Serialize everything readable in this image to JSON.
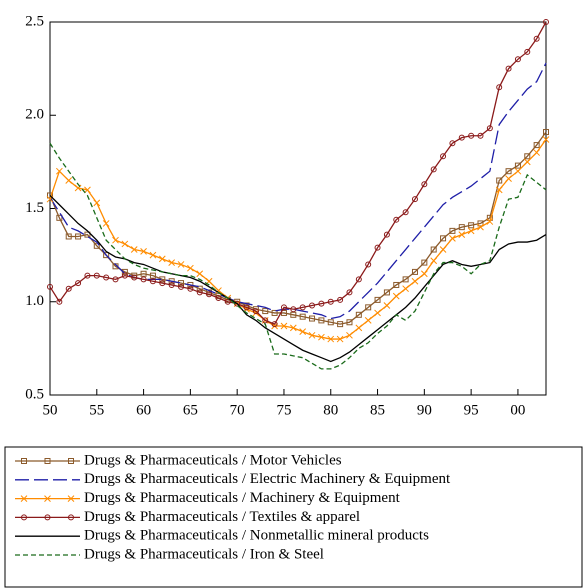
{
  "chart_data": {
    "type": "line",
    "x": [
      1950,
      1951,
      1952,
      1953,
      1954,
      1955,
      1956,
      1957,
      1958,
      1959,
      1960,
      1961,
      1962,
      1963,
      1964,
      1965,
      1966,
      1967,
      1968,
      1969,
      1970,
      1971,
      1972,
      1973,
      1974,
      1975,
      1976,
      1977,
      1978,
      1979,
      1980,
      1981,
      1982,
      1983,
      1984,
      1985,
      1986,
      1987,
      1988,
      1989,
      1990,
      1991,
      1992,
      1993,
      1994,
      1995,
      1996,
      1997,
      1998,
      1999,
      2000,
      2001,
      2002,
      2003
    ],
    "xlim": [
      1950,
      2003
    ],
    "xticks": [
      {
        "value": 1950,
        "label": "50"
      },
      {
        "value": 1955,
        "label": "55"
      },
      {
        "value": 1960,
        "label": "60"
      },
      {
        "value": 1965,
        "label": "65"
      },
      {
        "value": 1970,
        "label": "70"
      },
      {
        "value": 1975,
        "label": "75"
      },
      {
        "value": 1980,
        "label": "80"
      },
      {
        "value": 1985,
        "label": "85"
      },
      {
        "value": 1990,
        "label": "90"
      },
      {
        "value": 1995,
        "label": "95"
      },
      {
        "value": 2000,
        "label": "00"
      }
    ],
    "ylim": [
      0.5,
      2.5
    ],
    "yticks": [
      0.5,
      {
        "value": 1,
        "label": "1.0"
      },
      1.5,
      {
        "value": 2,
        "label": "2.0"
      },
      2.5
    ],
    "series": [
      {
        "name": "Drugs & Pharmaceuticals / Motor Vehicles",
        "color": "#8b5a2b",
        "marker": "square",
        "dash": "none",
        "values": [
          1.57,
          1.45,
          1.35,
          1.35,
          1.36,
          1.3,
          1.25,
          1.19,
          1.16,
          1.14,
          1.15,
          1.14,
          1.12,
          1.11,
          1.1,
          1.09,
          1.07,
          1.05,
          1.03,
          1.01,
          1.0,
          0.98,
          0.96,
          0.95,
          0.94,
          0.94,
          0.93,
          0.92,
          0.91,
          0.9,
          0.89,
          0.88,
          0.89,
          0.93,
          0.97,
          1.01,
          1.05,
          1.09,
          1.12,
          1.16,
          1.21,
          1.28,
          1.34,
          1.38,
          1.4,
          1.41,
          1.42,
          1.45,
          1.65,
          1.7,
          1.73,
          1.78,
          1.84,
          1.91
        ]
      },
      {
        "name": "Drugs & Pharmaceuticals / Electric Machinery & Equipment",
        "color": "#1f1fa8",
        "marker": "none",
        "dash": "14 5",
        "values": [
          1.56,
          1.48,
          1.4,
          1.38,
          1.35,
          1.32,
          1.25,
          1.2,
          1.15,
          1.13,
          1.12,
          1.12,
          1.12,
          1.11,
          1.1,
          1.09,
          1.08,
          1.06,
          1.04,
          1.02,
          1.0,
          0.99,
          0.98,
          0.97,
          0.95,
          0.96,
          0.96,
          0.95,
          0.94,
          0.93,
          0.91,
          0.92,
          0.95,
          1.0,
          1.05,
          1.1,
          1.16,
          1.22,
          1.28,
          1.34,
          1.4,
          1.46,
          1.52,
          1.56,
          1.59,
          1.62,
          1.66,
          1.7,
          1.95,
          2.02,
          2.08,
          2.14,
          2.18,
          2.28
        ]
      },
      {
        "name": "Drugs & Pharmaceuticals / Machinery & Equipment",
        "color": "#ff8c00",
        "marker": "x",
        "dash": "none",
        "values": [
          1.55,
          1.7,
          1.65,
          1.61,
          1.6,
          1.53,
          1.42,
          1.33,
          1.31,
          1.28,
          1.27,
          1.25,
          1.23,
          1.21,
          1.2,
          1.18,
          1.15,
          1.11,
          1.06,
          1.02,
          0.99,
          0.96,
          0.94,
          0.9,
          0.87,
          0.87,
          0.86,
          0.84,
          0.82,
          0.81,
          0.8,
          0.8,
          0.82,
          0.86,
          0.9,
          0.94,
          0.98,
          1.03,
          1.07,
          1.11,
          1.15,
          1.22,
          1.28,
          1.34,
          1.36,
          1.38,
          1.4,
          1.43,
          1.6,
          1.66,
          1.7,
          1.75,
          1.8,
          1.87
        ]
      },
      {
        "name": "Drugs & Pharmaceuticals / Textiles & apparel",
        "color": "#8b1a1a",
        "marker": "circle",
        "dash": "none",
        "values": [
          1.08,
          1.0,
          1.07,
          1.1,
          1.14,
          1.14,
          1.13,
          1.12,
          1.14,
          1.13,
          1.12,
          1.11,
          1.1,
          1.09,
          1.08,
          1.07,
          1.05,
          1.04,
          1.02,
          1.0,
          0.99,
          0.97,
          0.95,
          0.9,
          0.88,
          0.97,
          0.96,
          0.97,
          0.98,
          0.99,
          1.0,
          1.01,
          1.05,
          1.12,
          1.2,
          1.29,
          1.36,
          1.44,
          1.48,
          1.55,
          1.63,
          1.71,
          1.78,
          1.85,
          1.88,
          1.89,
          1.89,
          1.93,
          2.15,
          2.25,
          2.3,
          2.34,
          2.41,
          2.5
        ]
      },
      {
        "name": "Drugs & Pharmaceuticals / Nonmetallic mineral products",
        "color": "#000000",
        "marker": "none",
        "dash": "none",
        "values": [
          1.57,
          1.52,
          1.47,
          1.42,
          1.38,
          1.33,
          1.27,
          1.24,
          1.23,
          1.21,
          1.2,
          1.18,
          1.16,
          1.15,
          1.14,
          1.13,
          1.11,
          1.08,
          1.05,
          1.02,
          0.99,
          0.93,
          0.9,
          0.86,
          0.83,
          0.8,
          0.77,
          0.74,
          0.72,
          0.7,
          0.68,
          0.7,
          0.73,
          0.77,
          0.81,
          0.85,
          0.89,
          0.93,
          0.97,
          1.02,
          1.08,
          1.14,
          1.2,
          1.22,
          1.2,
          1.19,
          1.2,
          1.21,
          1.28,
          1.31,
          1.32,
          1.32,
          1.33,
          1.36
        ]
      },
      {
        "name": "Drugs & Pharmaceuticals / Iron & Steel",
        "color": "#1a6b1a",
        "marker": "none",
        "dash": "5 3",
        "values": [
          1.85,
          1.77,
          1.7,
          1.63,
          1.57,
          1.45,
          1.33,
          1.28,
          1.23,
          1.2,
          1.18,
          1.17,
          1.16,
          1.15,
          1.14,
          1.14,
          1.12,
          1.09,
          1.05,
          1.02,
          0.98,
          0.94,
          0.91,
          0.88,
          0.72,
          0.72,
          0.71,
          0.7,
          0.67,
          0.64,
          0.64,
          0.66,
          0.7,
          0.75,
          0.78,
          0.83,
          0.87,
          0.93,
          0.9,
          0.95,
          1.05,
          1.15,
          1.21,
          1.21,
          1.19,
          1.15,
          1.2,
          1.22,
          1.4,
          1.55,
          1.56,
          1.68,
          1.64,
          1.6
        ]
      }
    ]
  }
}
